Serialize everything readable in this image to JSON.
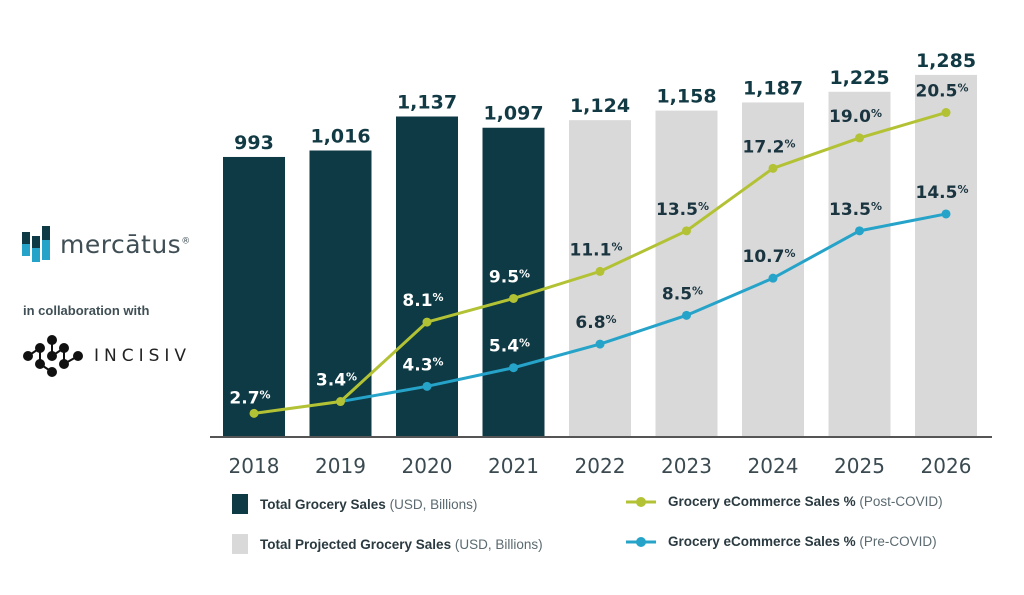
{
  "branding": {
    "logo_primary": "mercātus",
    "logo_primary_mark": "®",
    "collab_text": "in collaboration with",
    "logo_secondary": "INCISIV"
  },
  "chart_data": {
    "type": "bar+line",
    "categories": [
      "2018",
      "2019",
      "2020",
      "2021",
      "2022",
      "2023",
      "2024",
      "2025",
      "2026"
    ],
    "bars": {
      "values": [
        993,
        1016,
        1137,
        1097,
        1124,
        1158,
        1187,
        1225,
        1285
      ],
      "labels": [
        "993",
        "1,016",
        "1,137",
        "1,097",
        "1,124",
        "1,158",
        "1,187",
        "1,225",
        "1,285"
      ],
      "actual_count": 4
    },
    "series": [
      {
        "name": "Grocery eCommerce Sales % (Post-COVID)",
        "color": "#b3c234",
        "values": [
          2.7,
          3.4,
          8.1,
          9.5,
          11.1,
          13.5,
          17.2,
          19.0,
          20.5
        ]
      },
      {
        "name": "Grocery eCommerce Sales % (Pre-COVID)",
        "color": "#26a3c9",
        "values": [
          null,
          3.4,
          4.3,
          5.4,
          6.8,
          8.5,
          10.7,
          13.5,
          14.5
        ]
      }
    ],
    "ylim_bars": [
      0,
      1300
    ],
    "grid": false,
    "legend_placement": "bottom",
    "colors": {
      "actual": "#0d3a44",
      "projected": "#d9d9d9"
    },
    "legend": [
      {
        "bold": "Total Grocery Sales",
        "sub": "(USD, Billions)"
      },
      {
        "bold": "Total Projected Grocery Sales",
        "sub": "(USD, Billions)"
      },
      {
        "bold": "Grocery eCommerce Sales %",
        "sub": "(Post-COVID)"
      },
      {
        "bold": "Grocery eCommerce Sales %",
        "sub": "(Pre-COVID)"
      }
    ]
  }
}
